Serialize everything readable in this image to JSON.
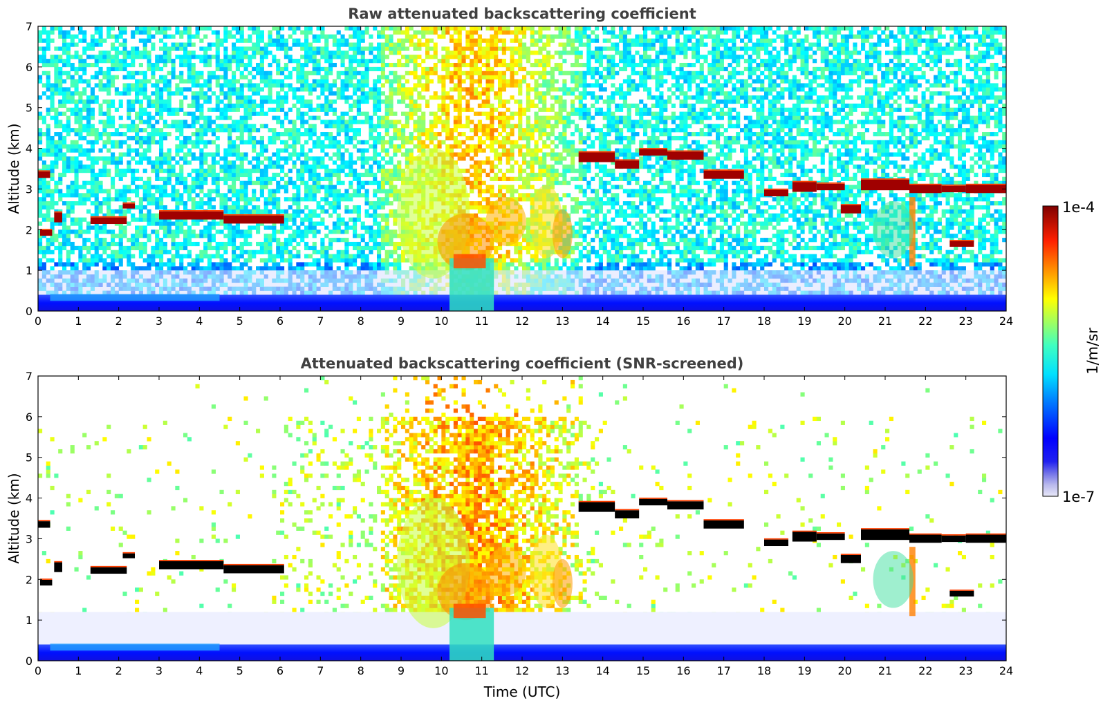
{
  "chart_data": [
    {
      "type": "heatmap",
      "title": "Raw attenuated backscattering coefficient",
      "xlabel": "",
      "ylabel": "Altitude (km)",
      "xlim": [
        0,
        24
      ],
      "ylim": [
        0,
        7
      ],
      "xticks": [
        "0",
        "1",
        "2",
        "3",
        "4",
        "5",
        "6",
        "7",
        "8",
        "9",
        "10",
        "11",
        "12",
        "13",
        "14",
        "15",
        "16",
        "17",
        "18",
        "19",
        "20",
        "21",
        "22",
        "23",
        "24"
      ],
      "yticks": [
        "0",
        "1",
        "2",
        "3",
        "4",
        "5",
        "6",
        "7"
      ],
      "screened": false,
      "features": [
        {
          "name": "boundary layer",
          "t": [
            0,
            24
          ],
          "alt": [
            0,
            0.4
          ]
        },
        {
          "name": "cloud layer early",
          "t": [
            0,
            6.1
          ],
          "alt_center": [
            3.4,
            1.9,
            2.3,
            2.2,
            2.35,
            2.4,
            2.2
          ]
        },
        {
          "name": "aerosol plume",
          "t": [
            9,
            13.3
          ],
          "alt": [
            0,
            4.5
          ]
        },
        {
          "name": "mid-level cloud",
          "t": [
            13.3,
            24
          ],
          "alt": [
            1.6,
            4.0
          ]
        }
      ]
    },
    {
      "type": "heatmap",
      "title": "Attenuated backscattering coefficient (SNR-screened)",
      "xlabel": "Time (UTC)",
      "ylabel": "Altitude (km)",
      "xlim": [
        0,
        24
      ],
      "ylim": [
        0,
        7
      ],
      "xticks": [
        "0",
        "1",
        "2",
        "3",
        "4",
        "5",
        "6",
        "7",
        "8",
        "9",
        "10",
        "11",
        "12",
        "13",
        "14",
        "15",
        "16",
        "17",
        "18",
        "19",
        "20",
        "21",
        "22",
        "23",
        "24"
      ],
      "yticks": [
        "0",
        "1",
        "2",
        "3",
        "4",
        "5",
        "6",
        "7"
      ],
      "screened": true
    }
  ],
  "colorbar": {
    "label": "1/m/sr",
    "max_label": "1e-4",
    "min_label": "1e-7",
    "colormap": "jet"
  },
  "clouds": [
    [
      0,
      0.3,
      3.35,
      0.08
    ],
    [
      0.05,
      0.35,
      1.92,
      0.07
    ],
    [
      0.4,
      0.6,
      2.3,
      0.12
    ],
    [
      1.3,
      2.2,
      2.22,
      0.08
    ],
    [
      2.1,
      2.4,
      2.58,
      0.06
    ],
    [
      3.0,
      4.6,
      2.35,
      0.1
    ],
    [
      4.6,
      6.1,
      2.25,
      0.1
    ],
    [
      13.4,
      14.3,
      3.78,
      0.12
    ],
    [
      14.3,
      14.9,
      3.6,
      0.1
    ],
    [
      14.9,
      15.6,
      3.9,
      0.08
    ],
    [
      15.6,
      16.5,
      3.82,
      0.1
    ],
    [
      16.5,
      17.5,
      3.35,
      0.1
    ],
    [
      18.0,
      18.6,
      2.9,
      0.08
    ],
    [
      18.7,
      19.3,
      3.05,
      0.12
    ],
    [
      19.3,
      20.0,
      3.05,
      0.08
    ],
    [
      19.9,
      20.4,
      2.5,
      0.1
    ],
    [
      20.4,
      21.6,
      3.1,
      0.13
    ],
    [
      21.6,
      22.4,
      3.0,
      0.1
    ],
    [
      22.4,
      23.0,
      3.0,
      0.08
    ],
    [
      23.0,
      24.0,
      3.0,
      0.1
    ],
    [
      22.6,
      23.2,
      1.65,
      0.07
    ]
  ]
}
